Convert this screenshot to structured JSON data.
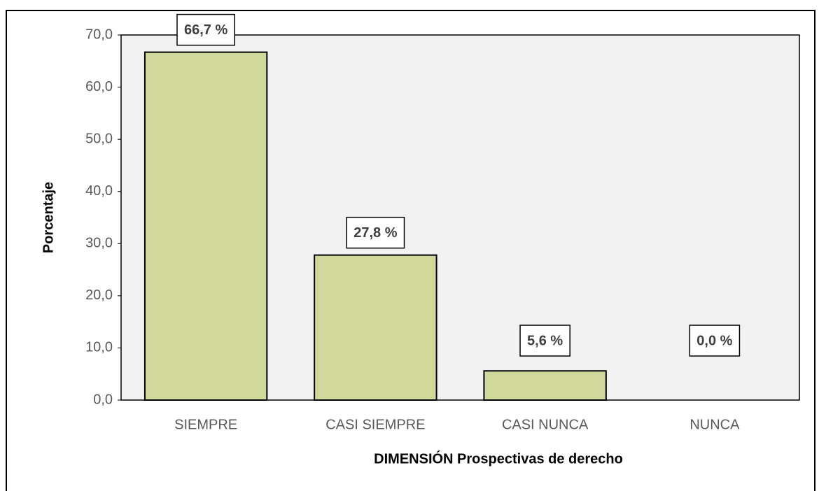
{
  "chart_data": {
    "type": "bar",
    "categories": [
      "SIEMPRE",
      "CASI SIEMPRE",
      "CASI NUNCA",
      "NUNCA"
    ],
    "values": [
      66.7,
      27.8,
      5.6,
      0.0
    ],
    "value_labels": [
      "66,7 %",
      "27,8 %",
      "5,6 %",
      "0,0 %"
    ],
    "color": "#d0d89c",
    "x_label": "DIMENSIÓN Prospectivas de derecho",
    "y_label": "Porcentaje",
    "ylim": [
      0,
      70
    ],
    "yticks": [
      {
        "value": 0,
        "label": "0,0"
      },
      {
        "value": 10,
        "label": "10,0"
      },
      {
        "value": 20,
        "label": "20,0"
      },
      {
        "value": 30,
        "label": "30,0"
      },
      {
        "value": 40,
        "label": "40,0"
      },
      {
        "value": 50,
        "label": "50,0"
      },
      {
        "value": 60,
        "label": "60,0"
      },
      {
        "value": 70,
        "label": "70,0"
      }
    ],
    "grid": false
  }
}
